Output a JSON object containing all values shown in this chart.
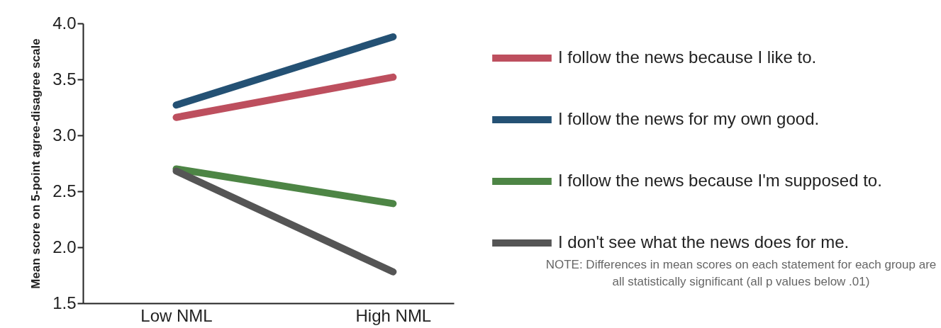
{
  "chart_data": {
    "type": "line",
    "ylabel": "Mean score on 5-point agree-disagree scale",
    "categories": [
      "Low NML",
      "High NML"
    ],
    "ylim": [
      1.5,
      4.0
    ],
    "yticks": [
      {
        "value": 1.5,
        "label": "1.5"
      },
      {
        "value": 2.0,
        "label": "2.0"
      },
      {
        "value": 2.5,
        "label": "2.5"
      },
      {
        "value": 3.0,
        "label": "3.0"
      },
      {
        "value": 3.5,
        "label": "3.5"
      },
      {
        "value": 4.0,
        "label": "4.0"
      }
    ],
    "grid": false,
    "legend": "right",
    "marker": "none",
    "line_style": "solid",
    "series": [
      {
        "name": "I follow the news because I like to.",
        "color": "#bd4f5e",
        "values": [
          3.16,
          3.52
        ]
      },
      {
        "name": "I follow the news for my own good.",
        "color": "#245174",
        "values": [
          3.27,
          3.88
        ]
      },
      {
        "name": "I follow the news because I'm supposed to.",
        "color": "#4d8545",
        "values": [
          2.7,
          2.39
        ]
      },
      {
        "name": "I don't see what the news does for me.",
        "color": "#555555",
        "values": [
          2.68,
          1.78
        ]
      }
    ],
    "annotations": [
      "NOTE: Differences in mean scores on each statement for each group are all statistically significant (all p values below .01)"
    ]
  }
}
